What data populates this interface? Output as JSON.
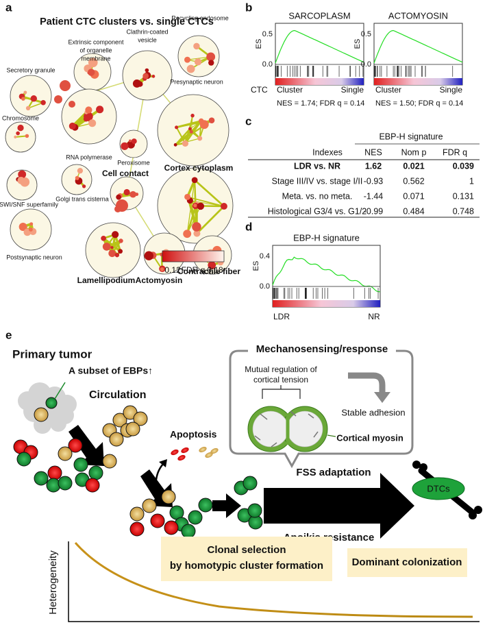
{
  "panels": [
    "a",
    "b",
    "c",
    "d",
    "e"
  ],
  "panel_a": {
    "title": "Patient CTC clusters vs. single CTCs",
    "clusters": [
      {
        "lines": [
          "Secretory granule"
        ]
      },
      {
        "lines": [
          "Extrinsic component",
          "of organelle",
          "membrane"
        ]
      },
      {
        "lines": [
          "Clathrin-coated",
          "vesicle"
        ]
      },
      {
        "lines": [
          "Recycling endosome"
        ]
      },
      {
        "lines": [
          "Chromosome"
        ]
      },
      {
        "lines": [
          "RNA polymerase"
        ]
      },
      {
        "lines": [
          "Presynaptic neuron"
        ]
      },
      {
        "lines": [
          "Peroxisome"
        ]
      },
      {
        "lines": [
          "Cell contact"
        ]
      },
      {
        "lines": [
          "Cortex cytoplasm"
        ]
      },
      {
        "lines": [
          "SWI/SNF superfamily"
        ]
      },
      {
        "lines": [
          "Golgi trans cisterna"
        ]
      },
      {
        "lines": [
          "Postsynaptic neuron"
        ]
      },
      {
        "lines": [
          "Lamellipodium"
        ]
      },
      {
        "lines": [
          "Actomyosin"
        ]
      },
      {
        "lines": [
          "Contractile fiber"
        ]
      }
    ],
    "legend": {
      "min": "0.12",
      "label": "FDR q",
      "max": "0.18"
    }
  },
  "panel_b": {
    "plots": [
      {
        "title": "SARCOPLASM",
        "stats": "NES = 1.74; FDR q = 0.14"
      },
      {
        "title": "ACTOMYOSIN",
        "stats": "NES = 1.50; FDR q = 0.14"
      }
    ],
    "y_label": "ES",
    "ticks": [
      "0.5",
      "0.0"
    ],
    "row_label": "CTC",
    "left": "Cluster",
    "right": "Single"
  },
  "panel_c": {
    "group_header": "EBP-H signature",
    "columns": [
      "Indexes",
      "NES",
      "Nom p",
      "FDR q"
    ],
    "rows": [
      [
        "LDR vs. NR",
        "1.62",
        "0.021",
        "0.039"
      ],
      [
        "Stage III/IV vs. stage I/II",
        "-0.93",
        "0.562",
        "1"
      ],
      [
        "Meta. vs. no meta.",
        "-1.44",
        "0.071",
        "0.131"
      ],
      [
        "Histological G3/4 vs. G1/2",
        "-0.99",
        "0.484",
        "0.748"
      ]
    ]
  },
  "panel_d": {
    "title": "EBP-H signature",
    "y_label": "ES",
    "ticks": [
      "0.4",
      "0.0"
    ],
    "left": "LDR",
    "right": "NR"
  },
  "panel_e": {
    "primary": "Primary tumor",
    "subset": "A subset of EBPs↑",
    "circulation": "Circulation",
    "apoptosis": "Apoptosis",
    "mechano_title": "Mechanosensing/response",
    "mutual": [
      "Mutual regulation of",
      "cortical tension"
    ],
    "stable": "Stable adhesion",
    "myosin": "Cortical myosin",
    "fss": "FSS adaptation",
    "anoikis": "Anoikis resistance",
    "dtcs": "DTCs",
    "y_label": "Heterogeneity",
    "clonal": [
      "Clonal selection",
      "by homotypic cluster formation"
    ],
    "dominant": "Dominant colonization"
  }
}
